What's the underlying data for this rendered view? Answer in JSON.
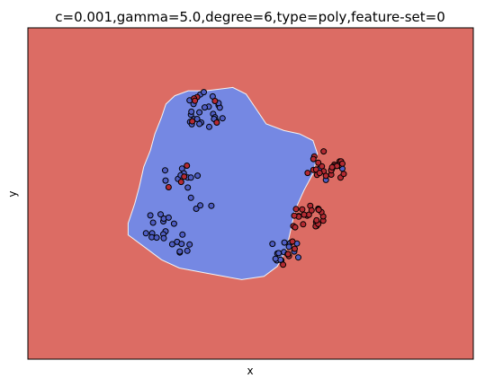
{
  "chart_data": {
    "type": "scatter",
    "title": "c=0.001,gamma=5.0,degree=6,type=poly,feature-set=0",
    "xlabel": "x",
    "ylabel": "y",
    "xlim": [
      0,
      1
    ],
    "ylim": [
      0,
      1
    ],
    "grid": false,
    "legend": "none",
    "xticks": [],
    "yticks": [],
    "background_region": {
      "color": "#dc6c64"
    },
    "decision_region": {
      "color": "#7588e3",
      "boundary": [
        [
          0.31,
          0.77
        ],
        [
          0.33,
          0.795
        ],
        [
          0.36,
          0.81
        ],
        [
          0.4,
          0.81
        ],
        [
          0.46,
          0.82
        ],
        [
          0.49,
          0.8
        ],
        [
          0.51,
          0.76
        ],
        [
          0.535,
          0.71
        ],
        [
          0.575,
          0.69
        ],
        [
          0.61,
          0.68
        ],
        [
          0.64,
          0.66
        ],
        [
          0.65,
          0.62
        ],
        [
          0.64,
          0.56
        ],
        [
          0.62,
          0.51
        ],
        [
          0.6,
          0.45
        ],
        [
          0.59,
          0.39
        ],
        [
          0.58,
          0.33
        ],
        [
          0.56,
          0.28
        ],
        [
          0.53,
          0.25
        ],
        [
          0.48,
          0.24
        ],
        [
          0.44,
          0.25
        ],
        [
          0.4,
          0.26
        ],
        [
          0.34,
          0.275
        ],
        [
          0.3,
          0.3
        ],
        [
          0.27,
          0.33
        ],
        [
          0.225,
          0.375
        ],
        [
          0.225,
          0.41
        ],
        [
          0.24,
          0.47
        ],
        [
          0.25,
          0.52
        ],
        [
          0.26,
          0.58
        ],
        [
          0.275,
          0.63
        ],
        [
          0.285,
          0.68
        ],
        [
          0.3,
          0.73
        ]
      ]
    },
    "series": [
      {
        "color": "#b42a32",
        "clusters": [
          {
            "cx": 0.4,
            "cy": 0.76,
            "n": 6
          },
          {
            "cx": 0.35,
            "cy": 0.54,
            "n": 4
          },
          {
            "cx": 0.67,
            "cy": 0.58,
            "n": 26
          },
          {
            "cx": 0.63,
            "cy": 0.43,
            "n": 24
          },
          {
            "cx": 0.58,
            "cy": 0.32,
            "n": 6
          }
        ]
      },
      {
        "color": "#4f5ec4",
        "clusters": [
          {
            "cx": 0.4,
            "cy": 0.76,
            "n": 26
          },
          {
            "cx": 0.35,
            "cy": 0.54,
            "n": 10
          },
          {
            "cx": 0.295,
            "cy": 0.4,
            "n": 14
          },
          {
            "cx": 0.34,
            "cy": 0.35,
            "n": 8
          },
          {
            "cx": 0.58,
            "cy": 0.32,
            "n": 14
          },
          {
            "cx": 0.395,
            "cy": 0.49,
            "n": 4
          },
          {
            "cx": 0.68,
            "cy": 0.56,
            "n": 3
          }
        ]
      }
    ],
    "points": [
      [
        0.366,
        0.738
      ],
      [
        0.373,
        0.724
      ],
      [
        0.407,
        0.701
      ],
      [
        0.372,
        0.77
      ],
      [
        0.387,
        0.799
      ],
      [
        0.368,
        0.716
      ],
      [
        0.406,
        0.762
      ],
      [
        0.416,
        0.74
      ],
      [
        0.389,
        0.714
      ],
      [
        0.367,
        0.747
      ],
      [
        0.363,
        0.781
      ],
      [
        0.364,
        0.716
      ],
      [
        0.42,
        0.73
      ],
      [
        0.385,
        0.745
      ],
      [
        0.423,
        0.719
      ],
      [
        0.428,
        0.766
      ],
      [
        0.397,
        0.76
      ],
      [
        0.38,
        0.725
      ],
      [
        0.431,
        0.759
      ],
      [
        0.415,
        0.793
      ],
      [
        0.418,
        0.725
      ],
      [
        0.368,
        0.709
      ],
      [
        0.395,
        0.806
      ],
      [
        0.428,
        0.773
      ],
      [
        0.385,
        0.71
      ],
      [
        0.437,
        0.727
      ],
      [
        0.346,
        0.575
      ],
      [
        0.359,
        0.548
      ],
      [
        0.309,
        0.539
      ],
      [
        0.381,
        0.554
      ],
      [
        0.308,
        0.57
      ],
      [
        0.35,
        0.561
      ],
      [
        0.359,
        0.518
      ],
      [
        0.366,
        0.548
      ],
      [
        0.337,
        0.544
      ],
      [
        0.343,
        0.555
      ],
      [
        0.279,
        0.38
      ],
      [
        0.328,
        0.409
      ],
      [
        0.304,
        0.416
      ],
      [
        0.278,
        0.368
      ],
      [
        0.305,
        0.424
      ],
      [
        0.309,
        0.386
      ],
      [
        0.265,
        0.38
      ],
      [
        0.316,
        0.427
      ],
      [
        0.275,
        0.434
      ],
      [
        0.304,
        0.377
      ],
      [
        0.298,
        0.437
      ],
      [
        0.289,
        0.367
      ],
      [
        0.281,
        0.412
      ],
      [
        0.305,
        0.365
      ],
      [
        0.358,
        0.327
      ],
      [
        0.324,
        0.347
      ],
      [
        0.341,
        0.322
      ],
      [
        0.341,
        0.325
      ],
      [
        0.335,
        0.354
      ],
      [
        0.345,
        0.348
      ],
      [
        0.347,
        0.376
      ],
      [
        0.363,
        0.346
      ],
      [
        0.607,
        0.307
      ],
      [
        0.56,
        0.319
      ],
      [
        0.569,
        0.298
      ],
      [
        0.559,
        0.298
      ],
      [
        0.567,
        0.3
      ],
      [
        0.576,
        0.352
      ],
      [
        0.589,
        0.351
      ],
      [
        0.549,
        0.348
      ],
      [
        0.586,
        0.339
      ],
      [
        0.575,
        0.323
      ],
      [
        0.598,
        0.325
      ],
      [
        0.604,
        0.349
      ],
      [
        0.556,
        0.303
      ],
      [
        0.563,
        0.32
      ],
      [
        0.366,
        0.487
      ],
      [
        0.378,
        0.454
      ],
      [
        0.387,
        0.464
      ],
      [
        0.412,
        0.463
      ],
      [
        0.654,
        0.574
      ],
      [
        0.706,
        0.575
      ],
      [
        0.669,
        0.541
      ]
    ],
    "points_red": [
      [
        0.38,
        0.791
      ],
      [
        0.373,
        0.787
      ],
      [
        0.42,
        0.779
      ],
      [
        0.375,
        0.78
      ],
      [
        0.369,
        0.718
      ],
      [
        0.424,
        0.714
      ],
      [
        0.344,
        0.535
      ],
      [
        0.357,
        0.584
      ],
      [
        0.316,
        0.519
      ],
      [
        0.351,
        0.551
      ],
      [
        0.682,
        0.572
      ],
      [
        0.688,
        0.587
      ],
      [
        0.702,
        0.548
      ],
      [
        0.641,
        0.571
      ],
      [
        0.643,
        0.612
      ],
      [
        0.628,
        0.562
      ],
      [
        0.7,
        0.597
      ],
      [
        0.703,
        0.597
      ],
      [
        0.647,
        0.572
      ],
      [
        0.697,
        0.584
      ],
      [
        0.66,
        0.582
      ],
      [
        0.699,
        0.586
      ],
      [
        0.652,
        0.593
      ],
      [
        0.688,
        0.582
      ],
      [
        0.664,
        0.567
      ],
      [
        0.706,
        0.59
      ],
      [
        0.694,
        0.583
      ],
      [
        0.649,
        0.556
      ],
      [
        0.641,
        0.604
      ],
      [
        0.664,
        0.627
      ],
      [
        0.681,
        0.557
      ],
      [
        0.669,
        0.553
      ],
      [
        0.709,
        0.559
      ],
      [
        0.681,
        0.57
      ],
      [
        0.655,
        0.562
      ],
      [
        0.683,
        0.579
      ],
      [
        0.663,
        0.418
      ],
      [
        0.647,
        0.414
      ],
      [
        0.648,
        0.402
      ],
      [
        0.646,
        0.401
      ],
      [
        0.627,
        0.433
      ],
      [
        0.608,
        0.432
      ],
      [
        0.616,
        0.452
      ],
      [
        0.663,
        0.431
      ],
      [
        0.652,
        0.454
      ],
      [
        0.608,
        0.43
      ],
      [
        0.652,
        0.408
      ],
      [
        0.618,
        0.407
      ],
      [
        0.653,
        0.452
      ],
      [
        0.596,
        0.402
      ],
      [
        0.634,
        0.463
      ],
      [
        0.631,
        0.436
      ],
      [
        0.602,
        0.453
      ],
      [
        0.6,
        0.398
      ],
      [
        0.659,
        0.444
      ],
      [
        0.62,
        0.436
      ],
      [
        0.598,
        0.433
      ],
      [
        0.648,
        0.419
      ],
      [
        0.637,
        0.449
      ],
      [
        0.653,
        0.451
      ],
      [
        0.583,
        0.317
      ],
      [
        0.586,
        0.311
      ],
      [
        0.599,
        0.333
      ],
      [
        0.584,
        0.317
      ],
      [
        0.573,
        0.285
      ],
      [
        0.594,
        0.355
      ]
    ]
  }
}
